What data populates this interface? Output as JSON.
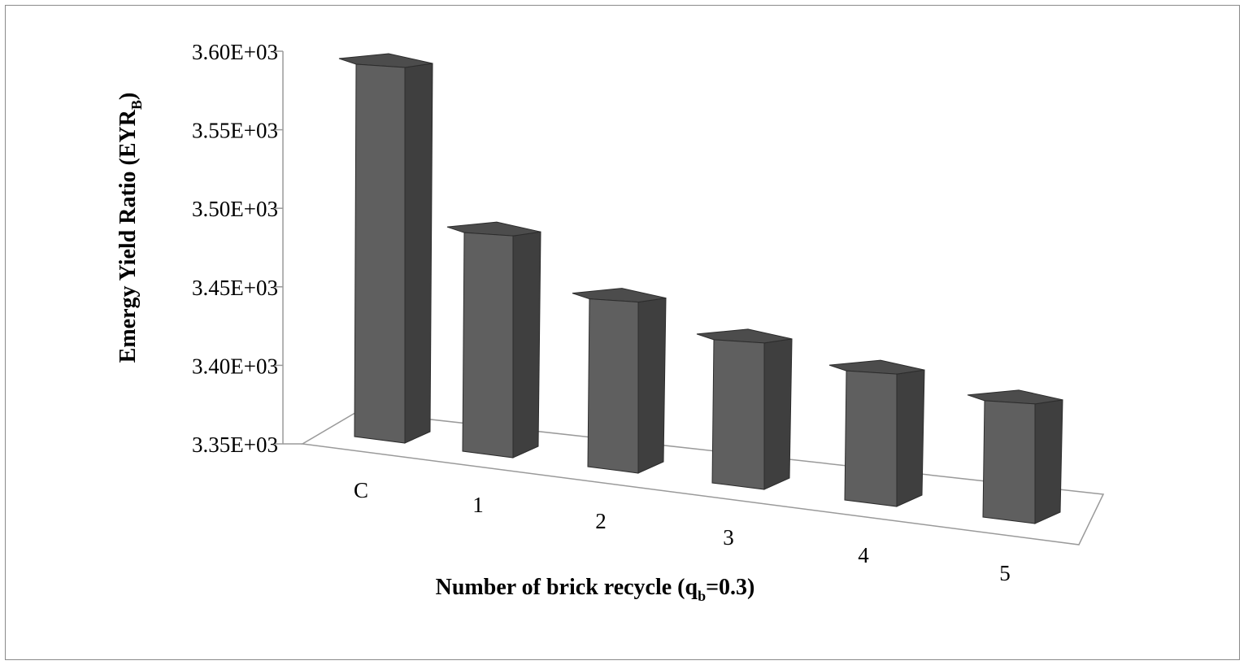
{
  "chart_data": {
    "type": "bar",
    "style": "3d-column",
    "categories": [
      "C",
      "1",
      "2",
      "3",
      "4",
      "5"
    ],
    "values": [
      3590,
      3490,
      3457,
      3441,
      3432,
      3424
    ],
    "ylim": [
      3350,
      3600
    ],
    "yticks": [
      "3.35E+03",
      "3.40E+03",
      "3.45E+03",
      "3.50E+03",
      "3.55E+03",
      "3.60E+03"
    ],
    "ylabel": {
      "main": "Emergy Yield Ratio (EYR",
      "sub": "B",
      "tail": ")"
    },
    "xlabel": {
      "main": "Number of  brick recycle (q",
      "sub": "b",
      "tail": "=0.3)"
    },
    "grid": false,
    "legend": "none",
    "colors": {
      "front": "#5f5f5f",
      "side": "#3f3f3f",
      "top": "#4c4c4c",
      "frame": "#9a9a9a"
    }
  }
}
